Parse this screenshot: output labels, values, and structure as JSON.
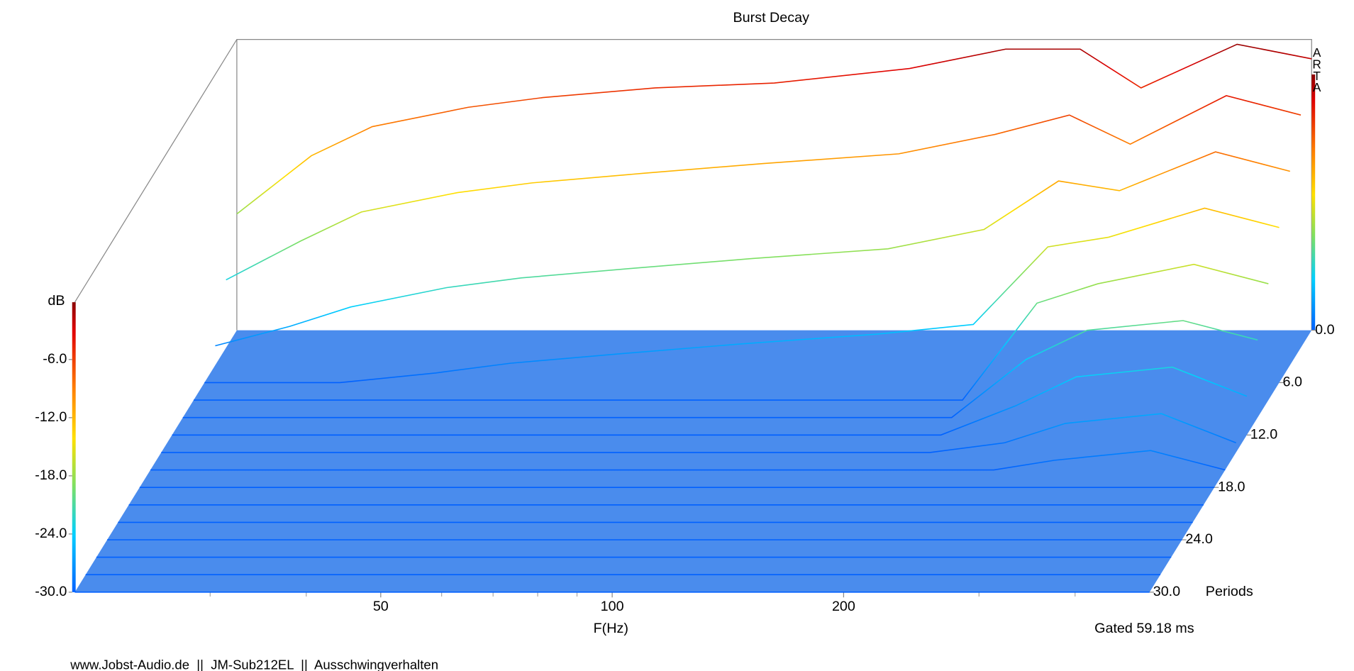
{
  "chart_data": {
    "type": "waterfall",
    "title": "Burst Decay",
    "xlabel": "F(Hz)",
    "zlabel": "dB",
    "ylabel": "Periods",
    "annotation": "Gated 59.18 ms",
    "watermark": "ARTA",
    "footer": "www.Jobst-Audio.de  ||  JM-Sub212EL  ||  Ausschwingverhalten",
    "log_x": true,
    "xlim": [
      20,
      500
    ],
    "xticks": [
      50,
      100,
      200
    ],
    "xminorticks": [
      30,
      40,
      60,
      70,
      80,
      90,
      300,
      400
    ],
    "ylim": [
      0,
      30
    ],
    "yticks": [
      {
        "value": 0,
        "label": "0.0"
      },
      {
        "value": 6,
        "label": "6.0"
      },
      {
        "value": 12,
        "label": "12.0"
      },
      {
        "value": 18,
        "label": "18.0"
      },
      {
        "value": 24,
        "label": "24.0"
      },
      {
        "value": 30,
        "label": "30.0"
      }
    ],
    "zlim": [
      -30,
      0
    ],
    "zticks": [
      {
        "value": -6,
        "label": "-6.0"
      },
      {
        "value": -12,
        "label": "-12.0"
      },
      {
        "value": -18,
        "label": "-18.0"
      },
      {
        "value": -24,
        "label": "-24.0"
      },
      {
        "value": -30,
        "label": "-30.0"
      }
    ],
    "x": [
      20,
      25,
      30,
      40,
      50,
      70,
      100,
      150,
      200,
      250,
      300,
      400,
      500
    ],
    "periods": [
      0,
      2,
      4,
      6,
      8,
      10,
      12,
      14,
      16,
      18,
      20,
      22,
      24,
      26,
      28,
      30
    ],
    "series": [
      {
        "values": [
          -18,
          -12,
          -9,
          -7,
          -6,
          -5,
          -4.5,
          -3,
          -1,
          -1,
          -5,
          -0.5,
          -2
        ]
      },
      {
        "values": [
          -23,
          -19,
          -16,
          -14,
          -13,
          -12,
          -11,
          -10,
          -8,
          -6,
          -9,
          -4,
          -6
        ]
      },
      {
        "values": [
          -28,
          -26,
          -24,
          -22,
          -21,
          -20,
          -19,
          -18,
          -16,
          -11,
          -12,
          -8,
          -10
        ]
      },
      {
        "values": [
          -30,
          -30,
          -30,
          -29,
          -28,
          -27,
          -26,
          -25,
          -24,
          -16,
          -15,
          -12,
          -14
        ]
      },
      {
        "values": [
          -30,
          -30,
          -30,
          -30,
          -30,
          -30,
          -30,
          -30,
          -30,
          -20,
          -18,
          -16,
          -18
        ]
      },
      {
        "values": [
          -30,
          -30,
          -30,
          -30,
          -30,
          -30,
          -30,
          -30,
          -30,
          -24,
          -21,
          -20,
          -22
        ]
      },
      {
        "values": [
          -30,
          -30,
          -30,
          -30,
          -30,
          -30,
          -30,
          -30,
          -30,
          -27,
          -24,
          -23,
          -26
        ]
      },
      {
        "values": [
          -30,
          -30,
          -30,
          -30,
          -30,
          -30,
          -30,
          -30,
          -30,
          -29,
          -27,
          -26,
          -29
        ]
      },
      {
        "values": [
          -30,
          -30,
          -30,
          -30,
          -30,
          -30,
          -30,
          -30,
          -30,
          -30,
          -29,
          -28,
          -30
        ]
      },
      {
        "values": [
          -30,
          -30,
          -30,
          -30,
          -30,
          -30,
          -30,
          -30,
          -30,
          -30,
          -30,
          -30,
          -30
        ]
      },
      {
        "values": [
          -30,
          -30,
          -30,
          -30,
          -30,
          -30,
          -30,
          -30,
          -30,
          -30,
          -30,
          -30,
          -30
        ]
      },
      {
        "values": [
          -30,
          -30,
          -30,
          -30,
          -30,
          -30,
          -30,
          -30,
          -30,
          -30,
          -30,
          -30,
          -30
        ]
      },
      {
        "values": [
          -30,
          -30,
          -30,
          -30,
          -30,
          -30,
          -30,
          -30,
          -30,
          -30,
          -30,
          -30,
          -30
        ]
      },
      {
        "values": [
          -30,
          -30,
          -30,
          -30,
          -30,
          -30,
          -30,
          -30,
          -30,
          -30,
          -30,
          -30,
          -30
        ]
      },
      {
        "values": [
          -30,
          -30,
          -30,
          -30,
          -30,
          -30,
          -30,
          -30,
          -30,
          -30,
          -30,
          -30,
          -30
        ]
      },
      {
        "values": [
          -30,
          -30,
          -30,
          -30,
          -30,
          -30,
          -30,
          -30,
          -30,
          -30,
          -30,
          -30,
          -30
        ]
      }
    ]
  }
}
